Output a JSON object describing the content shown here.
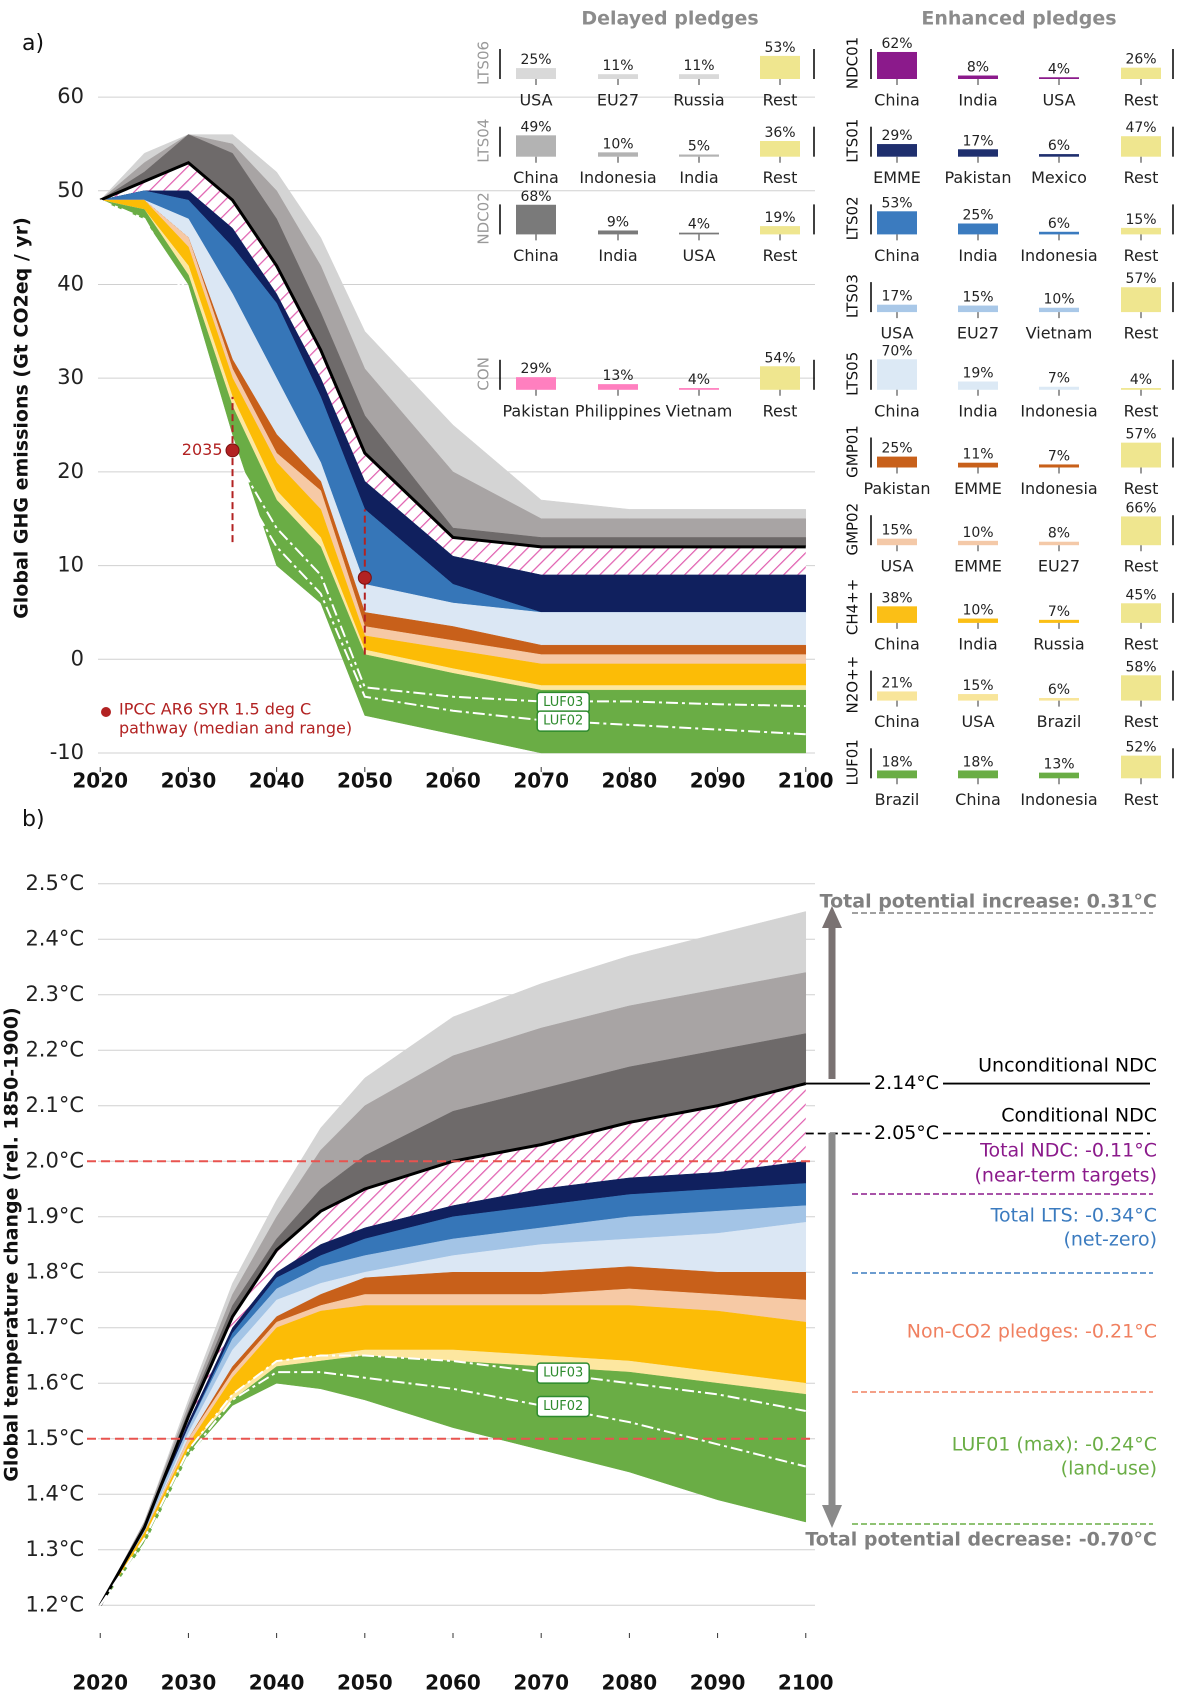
{
  "panel_labels": [
    "a)",
    "b)"
  ],
  "pledge_headings": [
    "Delayed pledges",
    "Enhanced pledges"
  ],
  "chart_data": [
    {
      "type": "area",
      "ylabel": "Global GHG emissions (Gt CO2eq / yr)",
      "x": [
        2020,
        2025,
        2030,
        2035,
        2040,
        2045,
        2050,
        2060,
        2070,
        2080,
        2090,
        2100
      ],
      "xlim": [
        2018.5,
        2101.5
      ],
      "xticks": [
        2020,
        2030,
        2040,
        2050,
        2060,
        2070,
        2080,
        2090,
        2100
      ],
      "ylim": [
        -11.5,
        63
      ],
      "yticks": [
        -10,
        0,
        10,
        20,
        30,
        40,
        50,
        60
      ],
      "grid": true,
      "series": [
        {
          "color": "#d4d4d4",
          "values": [
            49,
            54,
            56,
            56,
            52,
            45,
            35,
            25,
            17,
            16,
            16,
            16
          ]
        },
        {
          "color": "#a8a4a4",
          "values": [
            49,
            53,
            56,
            55,
            50,
            42,
            31,
            20,
            15,
            15,
            15,
            15
          ]
        },
        {
          "color": "#6e6a6a",
          "values": [
            49,
            52,
            56,
            54,
            47,
            37,
            26,
            14,
            13,
            13,
            13,
            13
          ]
        },
        {
          "color": "#ffffff",
          "edge_color": "#000000",
          "hatch": "#e060b0",
          "values": [
            49,
            51,
            53,
            49,
            42,
            33,
            22,
            13,
            12,
            12,
            12,
            12
          ]
        },
        {
          "color": "#10205e",
          "values": [
            49,
            50,
            50,
            46,
            39,
            30,
            19,
            11,
            9,
            9,
            9,
            9
          ]
        },
        {
          "color": "#3676b8",
          "values": [
            49,
            50,
            49,
            44,
            38,
            28,
            16,
            8,
            5,
            5,
            5,
            5
          ]
        },
        {
          "color": "#dbe7f4",
          "values": [
            49,
            49,
            47,
            39,
            30,
            21,
            8,
            6,
            5,
            5,
            5,
            5
          ]
        },
        {
          "color": "#c8601a",
          "values": [
            49,
            49,
            45,
            32,
            24,
            19,
            5,
            3.5,
            1.5,
            1.5,
            1.5,
            1.5
          ]
        },
        {
          "color": "#f6c9a5",
          "values": [
            49,
            49,
            45,
            31,
            22,
            18,
            3.5,
            2,
            0.5,
            0.5,
            0.5,
            0.5
          ]
        },
        {
          "color": "#fcbc06",
          "values": [
            49,
            49,
            44,
            30,
            21,
            16,
            2.5,
            1,
            -0.5,
            -0.5,
            -0.5,
            -0.5
          ]
        },
        {
          "color": "#fde7a0",
          "values": [
            49,
            48,
            42,
            28,
            18,
            13,
            1,
            -1,
            -2.8,
            -2.8,
            -2.8,
            -2.8
          ]
        },
        {
          "color": "#6aad45",
          "values": [
            49,
            48,
            41,
            27,
            17,
            12,
            0.5,
            -1.5,
            -3.3,
            -3.3,
            -3.3,
            -3.3
          ]
        },
        {
          "values": [
            49,
            47,
            40,
            24,
            10,
            6,
            -6,
            -8,
            -10,
            -10,
            -10,
            -10
          ]
        }
      ],
      "lines": [
        {
          "name": "LUF03",
          "color": "#ffffff",
          "values": [
            49,
            47,
            39,
            22,
            14,
            9,
            -3,
            -4,
            -4.5,
            -4.5,
            -4.8,
            -5
          ]
        },
        {
          "name": "LUF02",
          "color": "#ffffff",
          "values": [
            49,
            47,
            38,
            20,
            12,
            7,
            -4,
            -5.5,
            -6.5,
            -7,
            -7.5,
            -8
          ]
        }
      ],
      "ipcc": {
        "label": "2035",
        "color": "#b22222",
        "x": [
          2035,
          2050
        ],
        "median": [
          22.3,
          8.7
        ],
        "low": [
          12.5,
          0.5
        ],
        "high": [
          28,
          16
        ],
        "legend": [
          "IPCC AR6 SYR 1.5 deg C",
          "pathway (median and range)"
        ]
      }
    },
    {
      "type": "area",
      "ylabel": "Global temperature change (rel. 1850-1900)",
      "x": [
        2020,
        2025,
        2030,
        2035,
        2040,
        2045,
        2050,
        2060,
        2070,
        2080,
        2090,
        2100
      ],
      "xlim": [
        2018.5,
        2101.5
      ],
      "xticks": [
        2020,
        2030,
        2040,
        2050,
        2060,
        2070,
        2080,
        2090,
        2100
      ],
      "ylim": [
        1.15,
        2.55
      ],
      "yticks": [
        {
          "value": 1.2,
          "label": "1.2°C"
        },
        {
          "value": 1.3,
          "label": "1.3°C"
        },
        {
          "value": 1.4,
          "label": "1.4°C"
        },
        {
          "value": 1.5,
          "label": "1.5°C"
        },
        {
          "value": 1.6,
          "label": "1.6°C"
        },
        {
          "value": 1.7,
          "label": "1.7°C"
        },
        {
          "value": 1.8,
          "label": "1.8°C"
        },
        {
          "value": 1.9,
          "label": "1.9°C"
        },
        {
          "value": 2.0,
          "label": "2.0°C"
        },
        {
          "value": 2.1,
          "label": "2.1°C"
        },
        {
          "value": 2.2,
          "label": "2.2°C"
        },
        {
          "value": 2.3,
          "label": "2.3°C"
        },
        {
          "value": 2.4,
          "label": "2.4°C"
        },
        {
          "value": 2.5,
          "label": "2.5°C"
        }
      ],
      "grid": true,
      "series": [
        {
          "color": "#d4d4d4",
          "values": [
            1.2,
            1.35,
            1.57,
            1.78,
            1.93,
            2.06,
            2.15,
            2.26,
            2.32,
            2.37,
            2.41,
            2.45
          ]
        },
        {
          "color": "#a8a4a4",
          "values": [
            1.2,
            1.35,
            1.56,
            1.76,
            1.9,
            2.02,
            2.1,
            2.19,
            2.24,
            2.28,
            2.31,
            2.34
          ]
        },
        {
          "color": "#6e6a6a",
          "values": [
            1.2,
            1.34,
            1.55,
            1.74,
            1.86,
            1.95,
            2.01,
            2.09,
            2.13,
            2.17,
            2.2,
            2.23
          ]
        },
        {
          "color": "#ffffff",
          "edge_color": "#000000",
          "hatch": "#e060b0",
          "values": [
            1.2,
            1.34,
            1.54,
            1.72,
            1.84,
            1.91,
            1.95,
            2.0,
            2.03,
            2.07,
            2.1,
            2.14
          ]
        },
        {
          "color": "#10205e",
          "values": [
            1.2,
            1.34,
            1.53,
            1.7,
            1.8,
            1.85,
            1.88,
            1.92,
            1.95,
            1.97,
            1.98,
            2.0
          ]
        },
        {
          "color": "#3676b8",
          "values": [
            1.2,
            1.34,
            1.52,
            1.69,
            1.79,
            1.83,
            1.86,
            1.9,
            1.92,
            1.94,
            1.95,
            1.96
          ]
        },
        {
          "color": "#a3c4e6",
          "values": [
            1.2,
            1.34,
            1.52,
            1.68,
            1.77,
            1.81,
            1.83,
            1.86,
            1.88,
            1.9,
            1.91,
            1.92
          ]
        },
        {
          "color": "#dbe7f4",
          "values": [
            1.2,
            1.33,
            1.51,
            1.66,
            1.75,
            1.78,
            1.8,
            1.83,
            1.85,
            1.86,
            1.87,
            1.89
          ]
        },
        {
          "color": "#c8601a",
          "values": [
            1.2,
            1.33,
            1.5,
            1.63,
            1.72,
            1.76,
            1.79,
            1.8,
            1.8,
            1.81,
            1.8,
            1.8
          ]
        },
        {
          "color": "#f6c9a5",
          "values": [
            1.2,
            1.33,
            1.5,
            1.62,
            1.71,
            1.74,
            1.76,
            1.76,
            1.76,
            1.77,
            1.76,
            1.75
          ]
        },
        {
          "color": "#fcbc06",
          "values": [
            1.2,
            1.33,
            1.49,
            1.61,
            1.7,
            1.73,
            1.74,
            1.74,
            1.74,
            1.74,
            1.73,
            1.71
          ]
        },
        {
          "color": "#fde7a0",
          "values": [
            1.2,
            1.32,
            1.48,
            1.58,
            1.64,
            1.65,
            1.66,
            1.66,
            1.65,
            1.64,
            1.62,
            1.6
          ]
        },
        {
          "color": "#6aad45",
          "values": [
            1.2,
            1.32,
            1.48,
            1.57,
            1.63,
            1.64,
            1.65,
            1.64,
            1.63,
            1.62,
            1.6,
            1.58
          ]
        },
        {
          "values": [
            1.2,
            1.31,
            1.47,
            1.56,
            1.6,
            1.59,
            1.57,
            1.52,
            1.48,
            1.44,
            1.39,
            1.35
          ]
        }
      ],
      "lines": [
        {
          "name": "LUF03",
          "color": "#ffffff",
          "values": [
            1.2,
            1.32,
            1.48,
            1.58,
            1.64,
            1.65,
            1.65,
            1.64,
            1.62,
            1.6,
            1.58,
            1.55
          ]
        },
        {
          "name": "LUF02",
          "color": "#ffffff",
          "values": [
            1.2,
            1.31,
            1.47,
            1.57,
            1.62,
            1.62,
            1.61,
            1.59,
            1.56,
            1.53,
            1.49,
            1.45
          ]
        }
      ],
      "hlines": {
        "color": "#e8534f",
        "values": [
          2.0,
          1.5
        ]
      },
      "end_values": [
        {
          "value": 2.14,
          "label": "2.14°C"
        },
        {
          "value": 2.05,
          "label": "2.05°C"
        }
      ],
      "annotations": [
        "Total potential increase: 0.31°C",
        "Unconditional NDC",
        "Conditional NDC",
        "Total NDC: -0.11°C",
        "(near-term targets)",
        "Total LTS: -0.34°C",
        "(net-zero)",
        "Non-CO2 pledges: -0.21°C",
        "LUF01 (max): -0.24°C",
        "(land-use)",
        "Total potential decrease: -0.70°C"
      ]
    },
    {
      "type": "bar",
      "title": "LTS06",
      "categories": [
        "USA",
        "EU27",
        "Russia",
        "Rest"
      ],
      "values": [
        25,
        11,
        11,
        53
      ],
      "value_labels": [
        "25%",
        "11%",
        "11%",
        "53%"
      ],
      "colors": [
        "#d9d9d9",
        "#d9d9d9",
        "#d9d9d9",
        "#efe68f"
      ]
    },
    {
      "type": "bar",
      "title": "LTS04",
      "categories": [
        "China",
        "Indonesia",
        "India",
        "Rest"
      ],
      "values": [
        49,
        10,
        5,
        36
      ],
      "value_labels": [
        "49%",
        "10%",
        "5%",
        "36%"
      ],
      "colors": [
        "#b3b3b3",
        "#b3b3b3",
        "#b3b3b3",
        "#efe68f"
      ]
    },
    {
      "type": "bar",
      "title": "NDC02",
      "categories": [
        "China",
        "India",
        "USA",
        "Rest"
      ],
      "values": [
        68,
        9,
        4,
        19
      ],
      "value_labels": [
        "68%",
        "9%",
        "4%",
        "19%"
      ],
      "colors": [
        "#7a7a7a",
        "#7a7a7a",
        "#7a7a7a",
        "#efe68f"
      ]
    },
    {
      "type": "bar",
      "title": "CON",
      "categories": [
        "Pakistan",
        "Philippines",
        "Vietnam",
        "Rest"
      ],
      "values": [
        29,
        13,
        4,
        54
      ],
      "value_labels": [
        "29%",
        "13%",
        "4%",
        "54%"
      ],
      "colors": [
        "#ff7fbf",
        "#ff7fbf",
        "#ff7fbf",
        "#efe68f"
      ]
    },
    {
      "type": "bar",
      "title": "NDC01",
      "categories": [
        "China",
        "India",
        "USA",
        "Rest"
      ],
      "values": [
        62,
        8,
        4,
        26
      ],
      "value_labels": [
        "62%",
        "8%",
        "4%",
        "26%"
      ],
      "colors": [
        "#8b1a8b",
        "#8b1a8b",
        "#8b1a8b",
        "#efe68f"
      ]
    },
    {
      "type": "bar",
      "title": "LTS01",
      "categories": [
        "EMME",
        "Pakistan",
        "Mexico",
        "Rest"
      ],
      "values": [
        29,
        17,
        6,
        47
      ],
      "value_labels": [
        "29%",
        "17%",
        "6%",
        "47%"
      ],
      "colors": [
        "#1f2f6e",
        "#1f2f6e",
        "#1f2f6e",
        "#efe68f"
      ]
    },
    {
      "type": "bar",
      "title": "LTS02",
      "categories": [
        "China",
        "India",
        "Indonesia",
        "Rest"
      ],
      "values": [
        53,
        25,
        6,
        15
      ],
      "value_labels": [
        "53%",
        "25%",
        "6%",
        "15%"
      ],
      "colors": [
        "#3b7bbf",
        "#3b7bbf",
        "#3b7bbf",
        "#efe68f"
      ]
    },
    {
      "type": "bar",
      "title": "LTS03",
      "categories": [
        "USA",
        "EU27",
        "Vietnam",
        "Rest"
      ],
      "values": [
        17,
        15,
        10,
        57
      ],
      "value_labels": [
        "17%",
        "15%",
        "10%",
        "57%"
      ],
      "colors": [
        "#a9c8e8",
        "#a9c8e8",
        "#a9c8e8",
        "#efe68f"
      ]
    },
    {
      "type": "bar",
      "title": "LTS05",
      "categories": [
        "China",
        "India",
        "Indonesia",
        "Rest"
      ],
      "values": [
        70,
        19,
        7,
        4
      ],
      "value_labels": [
        "70%",
        "19%",
        "7%",
        "4%"
      ],
      "colors": [
        "#dce9f5",
        "#dce9f5",
        "#dce9f5",
        "#efe68f"
      ]
    },
    {
      "type": "bar",
      "title": "GMP01",
      "categories": [
        "Pakistan",
        "EMME",
        "Indonesia",
        "Rest"
      ],
      "values": [
        25,
        11,
        7,
        57
      ],
      "value_labels": [
        "25%",
        "11%",
        "7%",
        "57%"
      ],
      "colors": [
        "#c8601a",
        "#c8601a",
        "#c8601a",
        "#efe68f"
      ]
    },
    {
      "type": "bar",
      "title": "GMP02",
      "categories": [
        "USA",
        "EMME",
        "EU27",
        "Rest"
      ],
      "values": [
        15,
        10,
        8,
        66
      ],
      "value_labels": [
        "15%",
        "10%",
        "8%",
        "66%"
      ],
      "colors": [
        "#f4c9a8",
        "#f4c9a8",
        "#f4c9a8",
        "#efe68f"
      ]
    },
    {
      "type": "bar",
      "title": "CH4++",
      "categories": [
        "China",
        "India",
        "Russia",
        "Rest"
      ],
      "values": [
        38,
        10,
        7,
        45
      ],
      "value_labels": [
        "38%",
        "10%",
        "7%",
        "45%"
      ],
      "colors": [
        "#fbbf16",
        "#fbbf16",
        "#fbbf16",
        "#efe68f"
      ]
    },
    {
      "type": "bar",
      "title": "N2O++",
      "categories": [
        "China",
        "USA",
        "Brazil",
        "Rest"
      ],
      "values": [
        21,
        15,
        6,
        58
      ],
      "value_labels": [
        "21%",
        "15%",
        "6%",
        "58%"
      ],
      "colors": [
        "#f8e59a",
        "#f8e59a",
        "#f8e59a",
        "#efe68f"
      ]
    },
    {
      "type": "bar",
      "title": "LUF01",
      "categories": [
        "Brazil",
        "China",
        "Indonesia",
        "Rest"
      ],
      "values": [
        18,
        18,
        13,
        52
      ],
      "value_labels": [
        "18%",
        "18%",
        "13%",
        "52%"
      ],
      "colors": [
        "#6aad45",
        "#6aad45",
        "#6aad45",
        "#efe68f"
      ]
    }
  ]
}
